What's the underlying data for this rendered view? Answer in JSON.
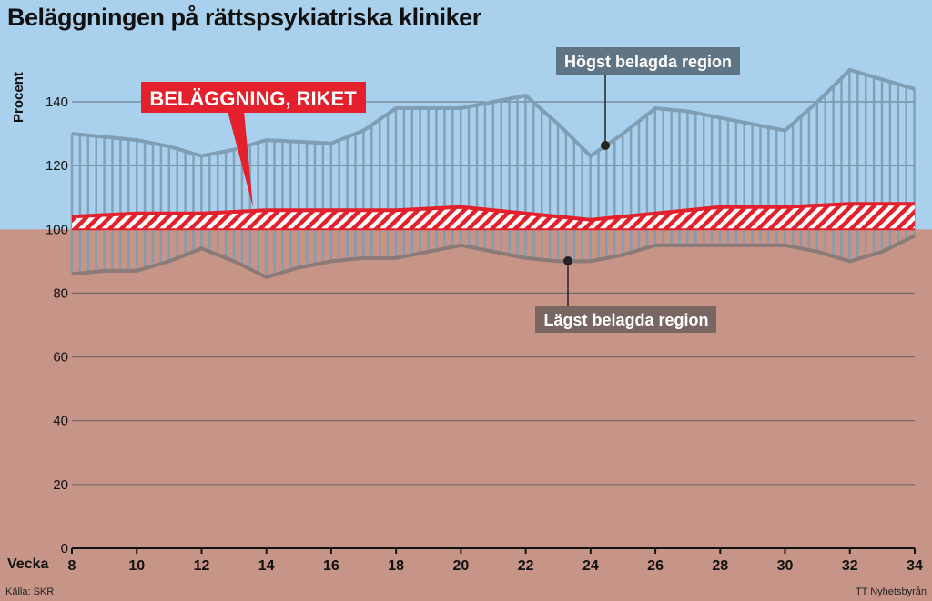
{
  "title": "Beläggningen på rättspsykiatriska kliniker",
  "source": "Källa: SKR",
  "credit": "TT Nyhetsbyrån",
  "colors": {
    "riket": "#e3202b",
    "band": "#7f9db3",
    "sky": "#a9d0ec",
    "ground": "#c79488"
  },
  "chart_data": {
    "type": "area",
    "title": "Beläggningen på rättspsykiatriska kliniker",
    "xlabel": "Vecka",
    "ylabel": "Procent",
    "xlim": [
      8,
      34
    ],
    "ylim": [
      0,
      150
    ],
    "grid": true,
    "x_ticks": [
      8,
      10,
      12,
      14,
      16,
      18,
      20,
      22,
      24,
      26,
      28,
      30,
      32,
      34
    ],
    "y_ticks": [
      0,
      20,
      40,
      60,
      80,
      100,
      120,
      140
    ],
    "x": [
      8,
      9,
      10,
      11,
      12,
      13,
      14,
      15,
      16,
      17,
      18,
      19,
      20,
      21,
      22,
      23,
      24,
      25,
      26,
      27,
      28,
      29,
      30,
      31,
      32,
      33,
      34
    ],
    "series": [
      {
        "name": "Högst belagda region",
        "values": [
          130,
          129,
          128,
          126,
          123,
          125,
          128,
          127.5,
          127,
          131,
          138,
          138,
          138,
          140,
          142,
          133,
          123,
          130,
          138,
          137,
          135,
          133,
          131,
          140,
          150,
          147,
          144
        ]
      },
      {
        "name": "Lägst belagda region",
        "values": [
          86,
          87,
          87,
          90,
          94,
          90,
          85,
          88,
          90,
          91,
          91,
          93,
          95,
          93,
          91,
          90,
          90,
          92,
          95,
          95,
          95,
          95,
          95,
          93,
          90,
          93,
          98
        ]
      },
      {
        "name": "BELÄGGNING, RIKET",
        "values": [
          104,
          104.5,
          105,
          105,
          105,
          105.5,
          106,
          106,
          106,
          106,
          106,
          106.5,
          107,
          106,
          105,
          104,
          103,
          104,
          105,
          106,
          107,
          107,
          107,
          107.5,
          108,
          108,
          108
        ]
      }
    ],
    "reference_line": 100,
    "annotations": [
      "BELÄGGNING, RIKET",
      "Högst belagda region",
      "Lägst belagda region"
    ]
  }
}
